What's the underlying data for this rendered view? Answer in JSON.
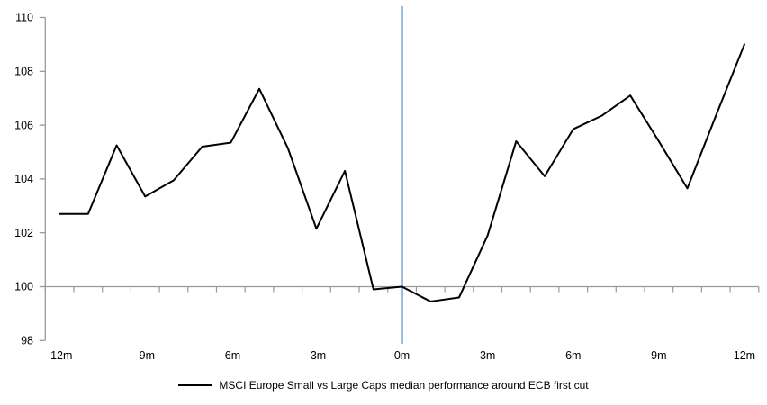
{
  "chart_data": {
    "type": "line",
    "x": [
      -12,
      -11,
      -10,
      -9,
      -8,
      -7,
      -6,
      -5,
      -4,
      -3,
      -2,
      -1,
      0,
      1,
      2,
      3,
      4,
      5,
      6,
      7,
      8,
      9,
      10,
      11,
      12
    ],
    "series": [
      {
        "name": "MSCI Europe Small vs Large Caps median performance around ECB first cut",
        "color": "#000000",
        "values": [
          102.7,
          102.7,
          105.25,
          103.35,
          103.95,
          105.2,
          105.35,
          107.35,
          105.15,
          102.15,
          104.3,
          99.9,
          100.0,
          99.45,
          99.6,
          101.9,
          105.4,
          104.1,
          105.85,
          106.35,
          107.1,
          105.4,
          103.65,
          106.35,
          109.0
        ]
      }
    ],
    "x_tick_positions": [
      -12,
      -9,
      -6,
      -3,
      0,
      3,
      6,
      9,
      12
    ],
    "x_tick_labels": [
      "-12m",
      "-9m",
      "-6m",
      "-3m",
      "0m",
      "3m",
      "6m",
      "9m",
      "12m"
    ],
    "y_ticks": [
      98,
      100,
      102,
      104,
      106,
      108,
      110
    ],
    "ylim": [
      98,
      110
    ],
    "axis_cross_y": 100,
    "event_line": {
      "x": 0,
      "color": "#7FA7D0"
    },
    "axis_color": "#999999",
    "grid": "off",
    "legend_position": "bottom-center",
    "background": "#FFFFFF"
  }
}
